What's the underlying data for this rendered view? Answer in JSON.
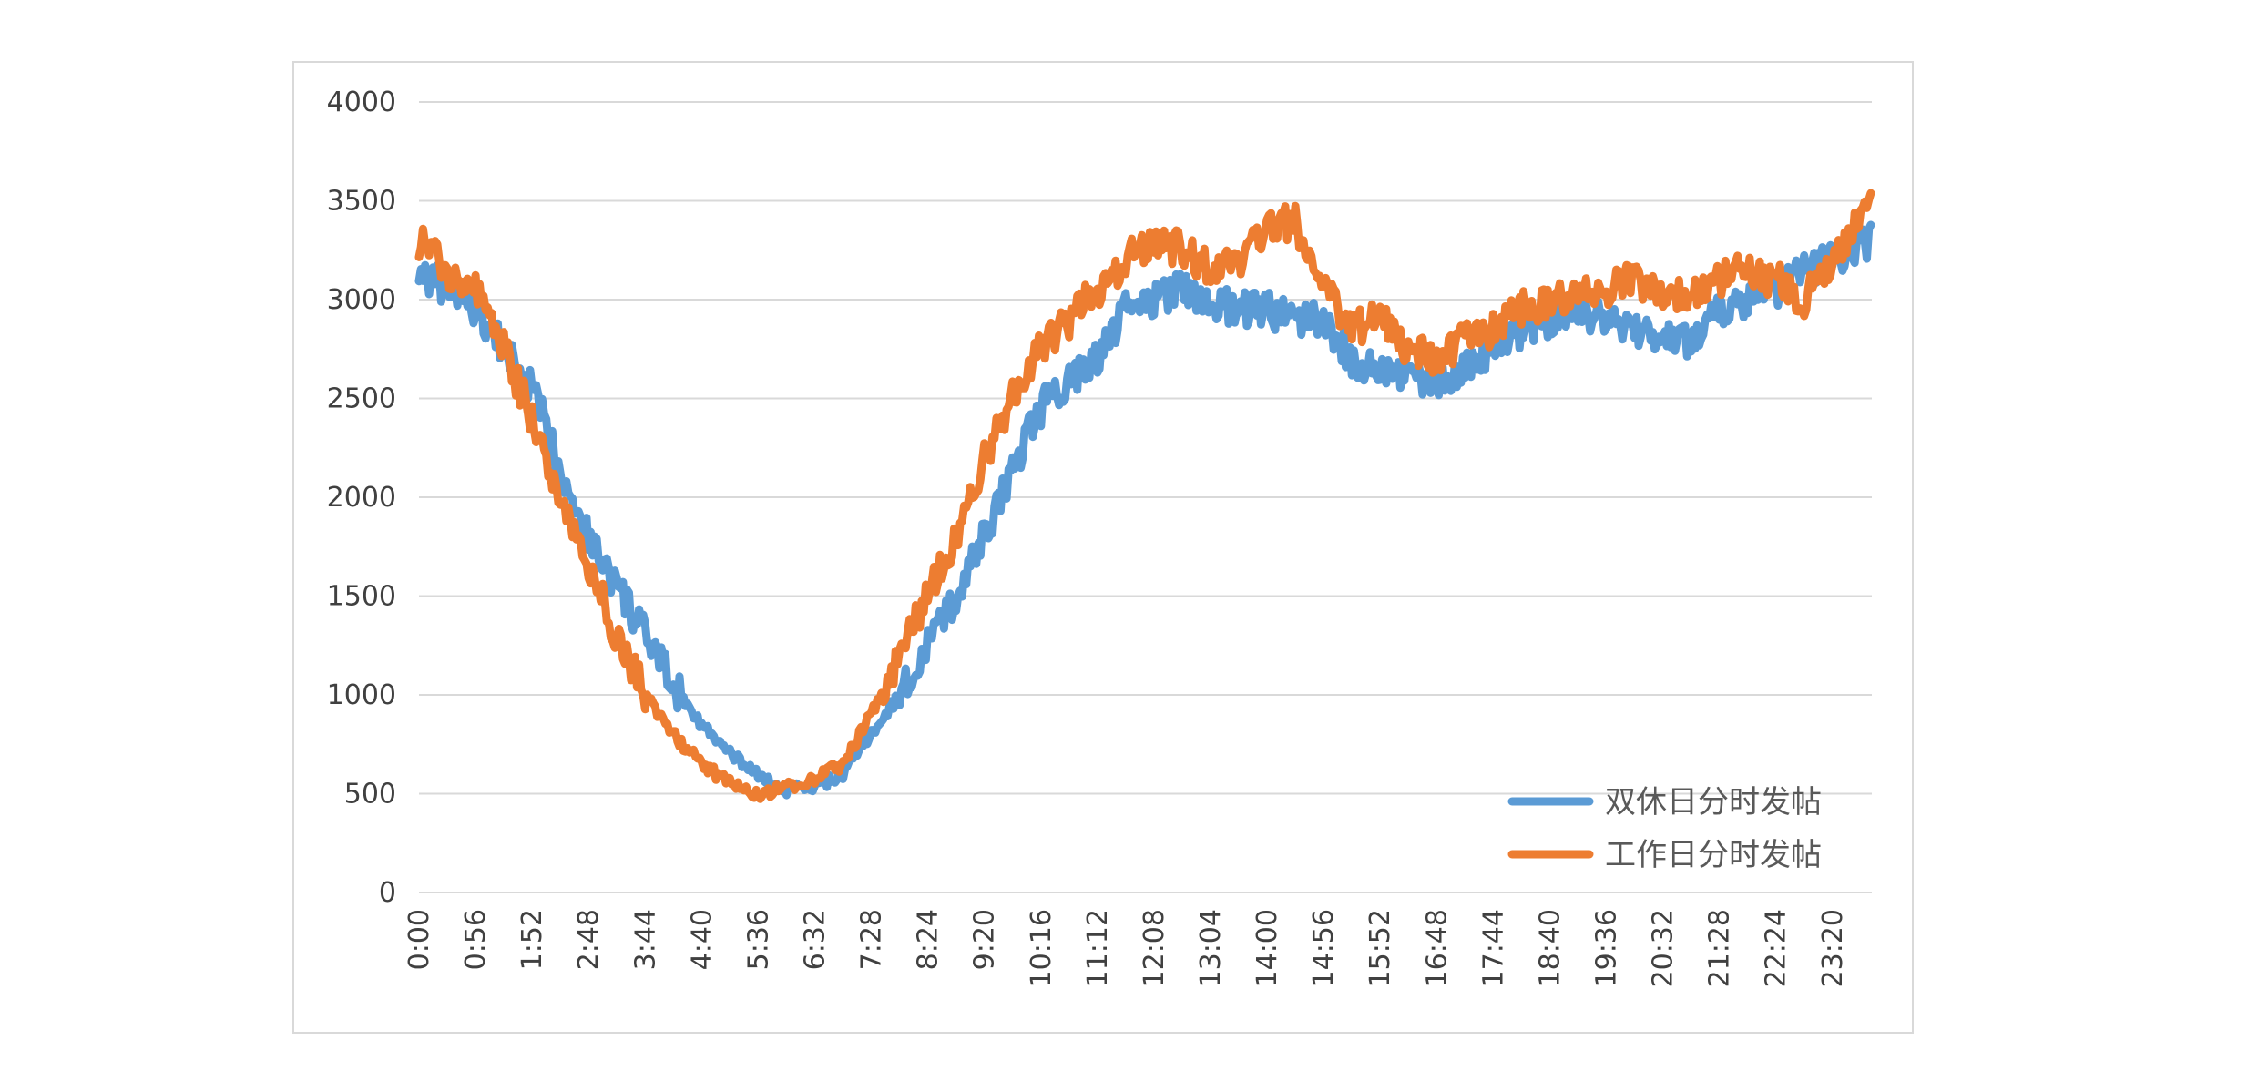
{
  "chart_data": {
    "type": "line",
    "title": "",
    "xlabel": "",
    "ylabel": "",
    "ylim": [
      0,
      4000
    ],
    "yticks": [
      "0",
      "500",
      "1000",
      "1500",
      "2000",
      "2500",
      "3000",
      "3500",
      "4000"
    ],
    "xticks": [
      "0:00",
      "0:56",
      "1:52",
      "2:48",
      "3:44",
      "4:40",
      "5:36",
      "6:32",
      "7:28",
      "8:24",
      "9:20",
      "10:16",
      "11:12",
      "12:08",
      "13:04",
      "14:00",
      "14:56",
      "15:52",
      "16:48",
      "17:44",
      "18:40",
      "19:36",
      "20:32",
      "21:28",
      "22:24",
      "23:20"
    ],
    "x_unit": "minutes since 0:00",
    "x_range": [
      0,
      1439
    ],
    "grid": "horizontal",
    "legend_position": "bottom-right",
    "series": [
      {
        "name": "双休日分时发帖",
        "color": "#5B9BD5",
        "x": [
          0,
          56,
          112,
          140,
          168,
          196,
          224,
          252,
          280,
          308,
          336,
          350,
          364,
          392,
          420,
          448,
          476,
          504,
          532,
          560,
          588,
          616,
          644,
          672,
          700,
          728,
          756,
          784,
          812,
          840,
          868,
          896,
          924,
          952,
          980,
          1008,
          1036,
          1064,
          1092,
          1120,
          1148,
          1176,
          1204,
          1232,
          1260,
          1288,
          1316,
          1344,
          1372,
          1400,
          1439
        ],
        "values": [
          3150,
          2950,
          2550,
          2150,
          1800,
          1550,
          1300,
          1050,
          850,
          700,
          600,
          540,
          520,
          530,
          600,
          800,
          1000,
          1250,
          1500,
          1800,
          2150,
          2450,
          2600,
          2700,
          2950,
          3000,
          3050,
          3000,
          2950,
          2950,
          2900,
          2900,
          2700,
          2650,
          2600,
          2600,
          2650,
          2750,
          2850,
          2900,
          2950,
          2900,
          2850,
          2800,
          2800,
          2950,
          3000,
          3050,
          3150,
          3200,
          3300
        ]
      },
      {
        "name": "工作日分时发帖",
        "color": "#ED7D31",
        "x": [
          0,
          28,
          56,
          84,
          112,
          140,
          168,
          196,
          224,
          252,
          280,
          308,
          336,
          364,
          378,
          392,
          420,
          448,
          476,
          504,
          532,
          560,
          588,
          616,
          644,
          672,
          700,
          728,
          756,
          784,
          812,
          840,
          868,
          896,
          924,
          952,
          980,
          1008,
          1036,
          1064,
          1092,
          1120,
          1148,
          1176,
          1204,
          1232,
          1260,
          1288,
          1316,
          1344,
          1372,
          1400,
          1424,
          1439
        ],
        "values": [
          3300,
          3150,
          3050,
          2750,
          2400,
          2000,
          1650,
          1300,
          1000,
          800,
          650,
          550,
          500,
          530,
          550,
          580,
          650,
          900,
          1200,
          1500,
          1800,
          2200,
          2500,
          2750,
          2900,
          3050,
          3200,
          3300,
          3250,
          3150,
          3200,
          3350,
          3400,
          3050,
          2850,
          2900,
          2750,
          2700,
          2800,
          2850,
          2950,
          3000,
          3050,
          3050,
          3100,
          3050,
          3000,
          3100,
          3150,
          3100,
          3000,
          3200,
          3400,
          3600
        ]
      }
    ]
  }
}
